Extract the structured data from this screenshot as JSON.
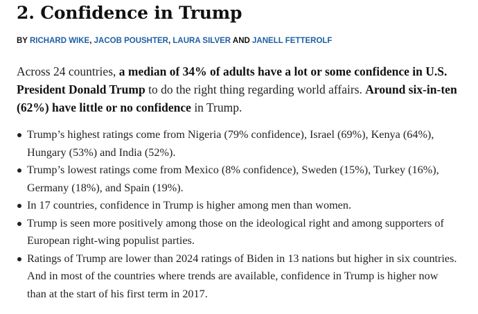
{
  "article": {
    "title": "2. Confidence in Trump",
    "byline": {
      "prefix": "BY",
      "authors": [
        "RICHARD WIKE",
        "JACOB POUSHTER",
        "LAURA SILVER",
        "JANELL FETTEROLF"
      ],
      "sep1": ",",
      "sep2": ",",
      "conjunction": "AND"
    },
    "intro": {
      "part1": "Across 24 countries, ",
      "bold1": "a median of 34% of adults have a lot or some confidence in U.S. President Donald Trump",
      "part2": " to do the right thing regarding world affairs. ",
      "bold2": "Around six-in-ten (62%) have little or no confidence",
      "part3": " in Trump."
    },
    "bullets": [
      "Trump’s highest ratings come from Nigeria (79% confidence), Israel (69%), Kenya (64%), Hungary (53%) and India (52%).",
      "Trump’s lowest ratings come from Mexico (8% confidence), Sweden (15%), Turkey (16%), Germany (18%), and Spain (19%).",
      "In 17 countries, confidence in Trump is higher among men than women.",
      "Trump is seen more positively among those on the ideological right and among supporters of European right-wing populist parties.",
      "Ratings of Trump are lower than 2024 ratings of Biden in 13 nations but higher in six countries. And in most of the countries where trends are available, confidence in Trump is higher now than at the start of his first term in 2017."
    ]
  },
  "colors": {
    "author_link": "#1d5fa5",
    "text": "#222222"
  }
}
